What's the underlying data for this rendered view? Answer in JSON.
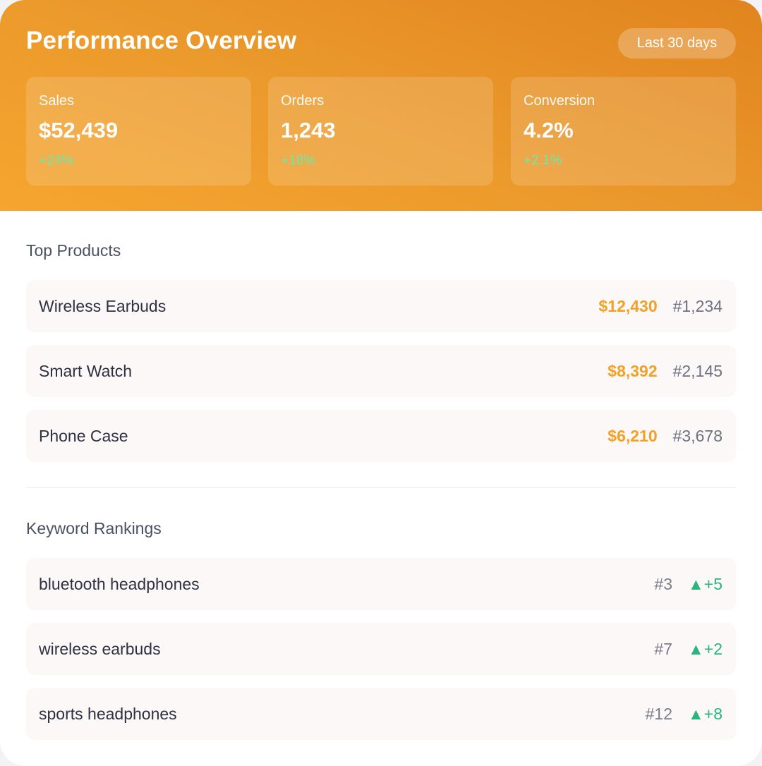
{
  "header": {
    "title": "Performance Overview",
    "period_label": "Last 30 days"
  },
  "stats": [
    {
      "label": "Sales",
      "value": "$52,439",
      "change": "+24%"
    },
    {
      "label": "Orders",
      "value": "1,243",
      "change": "+18%"
    },
    {
      "label": "Conversion",
      "value": "4.2%",
      "change": "+2.1%"
    }
  ],
  "top_products": {
    "title": "Top Products",
    "items": [
      {
        "name": "Wireless Earbuds",
        "revenue": "$12,430",
        "rank": "#1,234"
      },
      {
        "name": "Smart Watch",
        "revenue": "$8,392",
        "rank": "#2,145"
      },
      {
        "name": "Phone Case",
        "revenue": "$6,210",
        "rank": "#3,678"
      }
    ]
  },
  "keyword_rankings": {
    "title": "Keyword Rankings",
    "items": [
      {
        "keyword": "bluetooth headphones",
        "rank": "#3",
        "change": "▲+5"
      },
      {
        "keyword": "wireless earbuds",
        "rank": "#7",
        "change": "▲+2"
      },
      {
        "keyword": "sports headphones",
        "rank": "#12",
        "change": "▲+8"
      }
    ]
  },
  "colors": {
    "header_gradient_start": "#f6a52f",
    "header_gradient_end": "#e1841f",
    "revenue": "#f1a126",
    "positive_change_header": "#6ee7a8",
    "positive_change": "#2bb57e",
    "row_background": "#fcf8f8"
  }
}
